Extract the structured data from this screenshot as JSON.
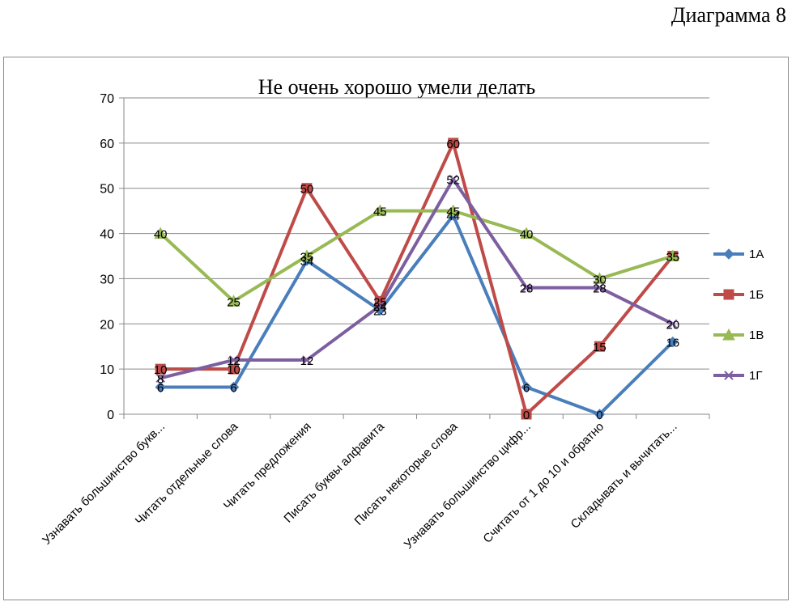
{
  "caption": "Диаграмма 8",
  "chart_data": {
    "type": "line",
    "title": "Не очень хорошо умели делать",
    "xlabel": "",
    "ylabel": "",
    "ylim": [
      0,
      70
    ],
    "yticks": [
      0,
      10,
      20,
      30,
      40,
      50,
      60,
      70
    ],
    "grid": true,
    "legend_position": "right",
    "categories": [
      "Узнавать большинство букв...",
      "Читать отдельные слова",
      "Читать предложения",
      "Писать буквы алфавита",
      "Писать некоторые слова",
      "Узнавать большинство цифр...",
      "Считать от 1 до 10 и обратно",
      "Складывать и вычитать..."
    ],
    "series": [
      {
        "name": "1А",
        "color": "#4a7ebb",
        "marker": "diamond",
        "values": [
          6,
          6,
          34,
          23,
          44,
          6,
          0,
          16
        ]
      },
      {
        "name": "1Б",
        "color": "#be4b48",
        "marker": "square",
        "values": [
          10,
          10,
          50,
          25,
          60,
          0,
          15,
          35
        ]
      },
      {
        "name": "1В",
        "color": "#98b954",
        "marker": "triangle",
        "values": [
          40,
          25,
          35,
          45,
          45,
          40,
          30,
          35
        ]
      },
      {
        "name": "1Г",
        "color": "#7d5fa0",
        "marker": "x",
        "values": [
          8,
          12,
          12,
          24,
          52,
          28,
          28,
          20
        ]
      }
    ]
  }
}
